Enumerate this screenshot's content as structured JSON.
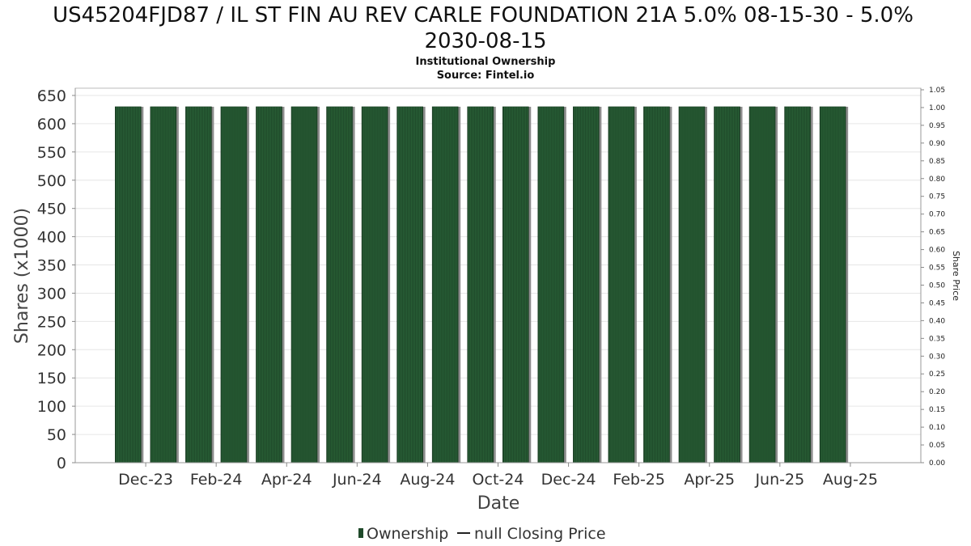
{
  "chart_data": {
    "type": "bar",
    "title_line1": "US45204FJD87 / IL ST FIN AU REV CARLE FOUNDATION 21A 5.0% 08-15-30 - 5.0%",
    "title_line2": "2030-08-15",
    "subtitle_line1": "Institutional Ownership",
    "subtitle_line2": "Source: Fintel.io",
    "xlabel": "Date",
    "ylabel": "Shares (x1000)",
    "y2label": "Share Price",
    "ylim": [
      0,
      650
    ],
    "y_ticks": [
      "0",
      "50",
      "100",
      "150",
      "200",
      "250",
      "300",
      "350",
      "400",
      "450",
      "500",
      "550",
      "600",
      "650"
    ],
    "y2lim": [
      0,
      1.05
    ],
    "y2_ticks": [
      "0.00",
      "0.05",
      "0.10",
      "0.15",
      "0.20",
      "0.25",
      "0.30",
      "0.35",
      "0.40",
      "0.45",
      "0.50",
      "0.55",
      "0.60",
      "0.65",
      "0.70",
      "0.75",
      "0.80",
      "0.85",
      "0.90",
      "0.95",
      "1.00",
      "1.05"
    ],
    "x_ticks": [
      "Dec-23",
      "Feb-24",
      "Apr-24",
      "Jun-24",
      "Aug-24",
      "Oct-24",
      "Dec-24",
      "Feb-25",
      "Apr-25",
      "Jun-25",
      "Aug-25"
    ],
    "x_tick_positions": [
      0.5,
      2.5,
      4.5,
      6.5,
      8.5,
      10.5,
      12.5,
      14.5,
      16.5,
      18.5,
      20.5
    ],
    "x_range": [
      -1.5,
      22.5
    ],
    "grid": true,
    "series": [
      {
        "name": "Ownership",
        "color": "#1f4a2a",
        "values": [
          630,
          630,
          630,
          630,
          630,
          630,
          630,
          630,
          630,
          630,
          630,
          630,
          630,
          630,
          630,
          630,
          630,
          630,
          630,
          630,
          630
        ]
      }
    ],
    "legend": {
      "position": "bottom-center",
      "item1": "Ownership",
      "item2": "null Closing Price",
      "line_color": "#222222"
    }
  }
}
